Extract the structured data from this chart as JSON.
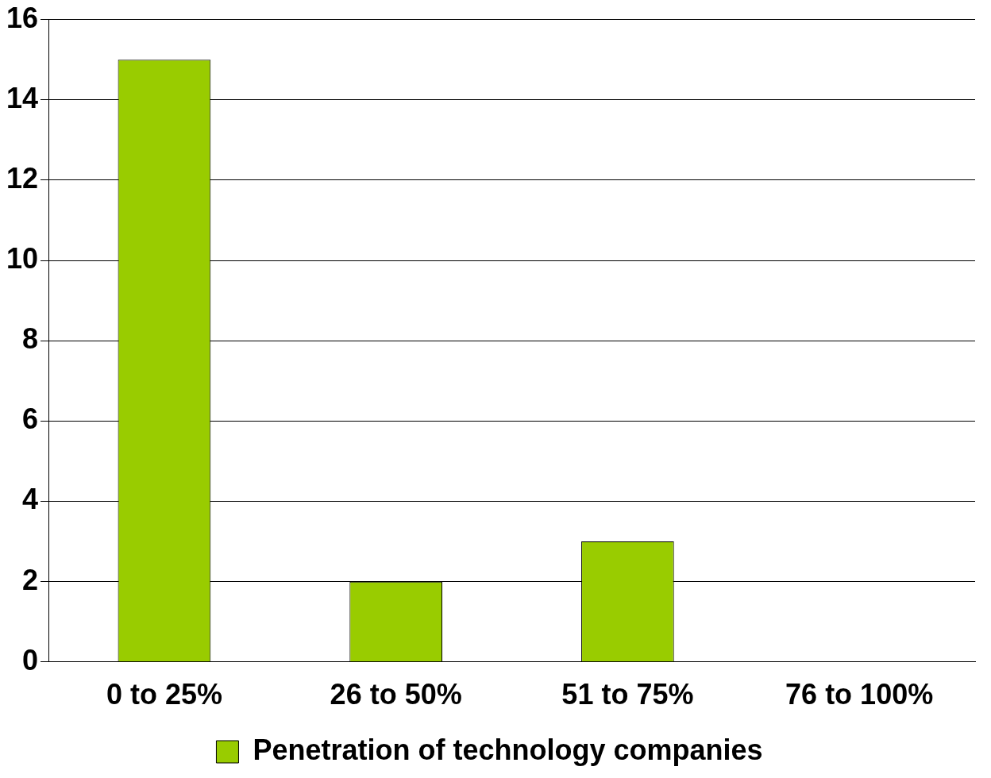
{
  "chart_data": {
    "type": "bar",
    "categories": [
      "0 to 25%",
      "26 to 50%",
      "51 to 75%",
      "76 to 100%"
    ],
    "series": [
      {
        "name": "Penetration of technology companies",
        "color": "#99cc00",
        "values": [
          15,
          2,
          3,
          0
        ]
      }
    ],
    "ylim": [
      0,
      16
    ],
    "yticks": [
      0,
      2,
      4,
      6,
      8,
      10,
      12,
      14,
      16
    ],
    "grid": "y",
    "legend": "bottom"
  }
}
